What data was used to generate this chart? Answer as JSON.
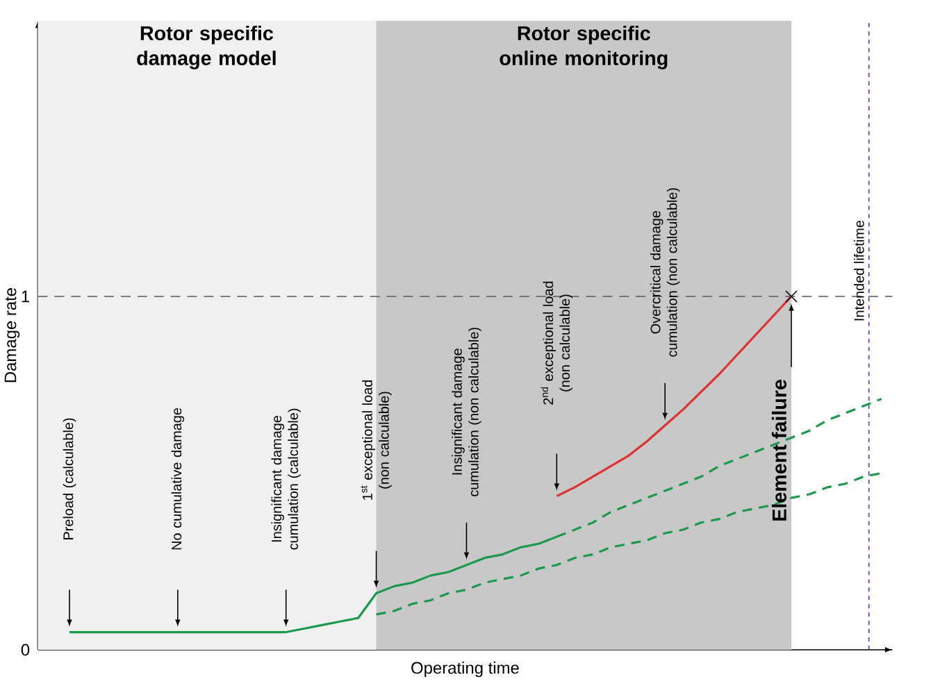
{
  "chart_data": {
    "type": "line",
    "xlabel": "Operating time",
    "ylabel": "Damage rate",
    "ylim": [
      0,
      1.78
    ],
    "yticks": [
      0,
      1
    ],
    "tick_labels": "y",
    "grid": false,
    "marker": "none",
    "categories": [
      null,
      null,
      null,
      null,
      null,
      null,
      null,
      null,
      null,
      null,
      null,
      null,
      null,
      null,
      null,
      null,
      null,
      null,
      null,
      null,
      null,
      null,
      null,
      null,
      null,
      null,
      null,
      null,
      null,
      null,
      null,
      null,
      null,
      null,
      null,
      null,
      null,
      null,
      null,
      null,
      null,
      null,
      null,
      null,
      null,
      null
    ],
    "series": [
      {
        "color": "#1a9a4a",
        "line_style": "solid",
        "values": [
          0.05,
          0.05,
          0.05,
          0.05,
          0.05,
          0.05,
          0.05,
          0.05,
          0.05,
          0.05,
          0.05,
          0.05,
          0.05,
          0.06,
          0.07,
          0.08,
          0.09,
          0.16,
          0.18,
          0.19,
          0.21,
          0.22,
          0.24,
          0.26,
          0.27,
          0.29,
          0.3,
          0.32,
          null,
          null,
          null,
          null,
          null,
          null,
          null,
          null,
          null,
          null,
          null,
          null,
          null,
          null,
          null,
          null,
          null,
          null
        ]
      },
      {
        "color": "#e03030",
        "line_style": "solid",
        "values": [
          null,
          null,
          null,
          null,
          null,
          null,
          null,
          null,
          null,
          null,
          null,
          null,
          null,
          null,
          null,
          null,
          null,
          null,
          null,
          null,
          null,
          null,
          null,
          null,
          null,
          null,
          null,
          0.435,
          0.46,
          0.49,
          0.52,
          0.55,
          0.59,
          0.635,
          0.68,
          0.73,
          0.78,
          0.835,
          0.89,
          0.945,
          1.0,
          null,
          null,
          null,
          null,
          null
        ]
      },
      {
        "color": "#1a9a4a",
        "line_style": "dashed",
        "values": [
          null,
          null,
          null,
          null,
          null,
          null,
          null,
          null,
          null,
          null,
          null,
          null,
          null,
          null,
          null,
          null,
          null,
          null,
          null,
          null,
          null,
          null,
          null,
          null,
          null,
          null,
          null,
          0.32,
          0.34,
          0.36,
          0.39,
          0.41,
          0.43,
          0.45,
          0.47,
          0.49,
          0.52,
          0.54,
          0.56,
          0.58,
          0.6,
          0.62,
          0.65,
          0.67,
          0.69,
          0.71
        ]
      },
      {
        "color": "#1a9a4a",
        "line_style": "dashed",
        "values": [
          null,
          null,
          null,
          null,
          null,
          null,
          null,
          null,
          null,
          null,
          null,
          null,
          null,
          null,
          null,
          null,
          null,
          0.1,
          0.11,
          0.13,
          0.14,
          0.16,
          0.17,
          0.19,
          0.2,
          0.21,
          0.23,
          0.24,
          0.26,
          0.27,
          0.29,
          0.3,
          0.31,
          0.33,
          0.34,
          0.36,
          0.37,
          0.39,
          0.4,
          0.41,
          0.43,
          0.44,
          0.46,
          0.47,
          0.49,
          0.5
        ]
      }
    ],
    "ref_lines": [
      {
        "axis": "y",
        "value": 1,
        "color": "#555555",
        "line_style": "dashed"
      }
    ],
    "annotations": [
      "Preload (calculable)",
      "No cumulative damage",
      "Insignificant damage cumulation (calculable)",
      "1$^{st}$ exceptional load (non calculable)",
      "Insignificant damage cumulation (non calculable)",
      "2$^{nd}$ exceptional load (non calculable)",
      "Overcritical damage cumulation (non calculable)",
      "Element failure",
      "Rotor specific damage model",
      "Rotor specific online monitoring",
      "Intended lifetime"
    ]
  }
}
